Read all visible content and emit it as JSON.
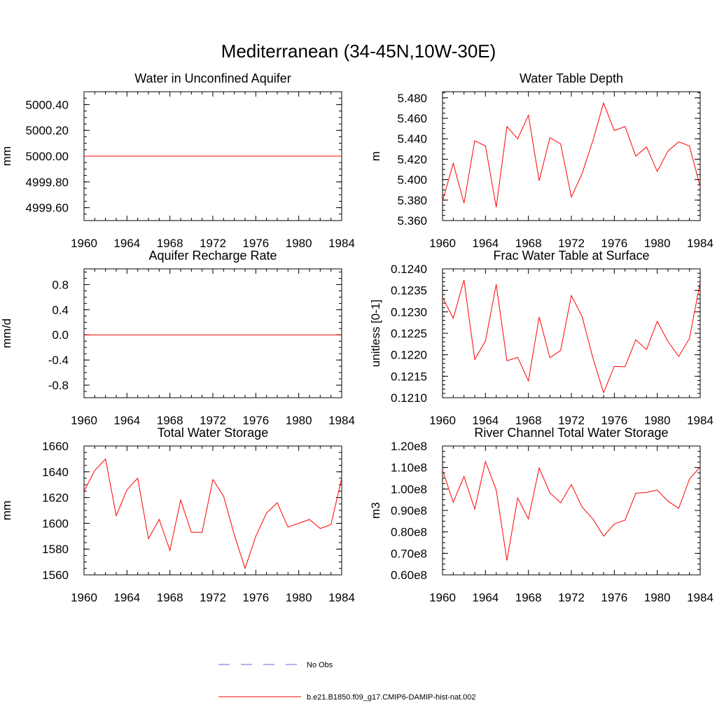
{
  "figure": {
    "title": "Mediterranean (34-45N,10W-30E)"
  },
  "legend": {
    "items": [
      {
        "label": "No Obs",
        "style": "dashed",
        "color": "#6a6adf"
      },
      {
        "label": "b.e21.B1850.f09_g17.CMIP6-DAMIP-hist-nat.002",
        "style": "solid",
        "color": "#ff0000"
      }
    ]
  },
  "chart_data": [
    {
      "type": "line",
      "title": "Water in Unconfined Aquifer",
      "xlabel": "",
      "ylabel": "mm",
      "xlim": [
        1960,
        1984
      ],
      "ylim": [
        4999.5,
        5000.5
      ],
      "xticks": [
        "1960",
        "1964",
        "1968",
        "1972",
        "1976",
        "1980",
        "1984"
      ],
      "yticks": [
        "4999.60",
        "4999.80",
        "5000.00",
        "5000.20",
        "5000.40"
      ],
      "ytick_values": [
        4999.6,
        4999.8,
        5000.0,
        5000.2,
        5000.4
      ],
      "yminor": 0.05,
      "grid": false,
      "series": [
        {
          "color": "#ff0000",
          "x": [
            1960,
            1961,
            1962,
            1963,
            1964,
            1965,
            1966,
            1967,
            1968,
            1969,
            1970,
            1971,
            1972,
            1973,
            1974,
            1975,
            1976,
            1977,
            1978,
            1979,
            1980,
            1981,
            1982,
            1983,
            1984
          ],
          "values": [
            5000,
            5000,
            5000,
            5000,
            5000,
            5000,
            5000,
            5000,
            5000,
            5000,
            5000,
            5000,
            5000,
            5000,
            5000,
            5000,
            5000,
            5000,
            5000,
            5000,
            5000,
            5000,
            5000,
            5000,
            5000
          ]
        }
      ]
    },
    {
      "type": "line",
      "title": "Water Table Depth",
      "xlabel": "",
      "ylabel": "m",
      "xlim": [
        1960,
        1984
      ],
      "ylim": [
        5.36,
        5.486
      ],
      "xticks": [
        "1960",
        "1964",
        "1968",
        "1972",
        "1976",
        "1980",
        "1984"
      ],
      "yticks": [
        "5.360",
        "5.380",
        "5.400",
        "5.420",
        "5.440",
        "5.460",
        "5.480"
      ],
      "ytick_values": [
        5.36,
        5.38,
        5.4,
        5.42,
        5.44,
        5.46,
        5.48
      ],
      "yminor": 0.005,
      "grid": false,
      "series": [
        {
          "color": "#ff0000",
          "x": [
            1960,
            1961,
            1962,
            1963,
            1964,
            1965,
            1966,
            1967,
            1968,
            1969,
            1970,
            1971,
            1972,
            1973,
            1974,
            1975,
            1976,
            1977,
            1978,
            1979,
            1980,
            1981,
            1982,
            1983,
            1984
          ],
          "values": [
            5.379,
            5.416,
            5.377,
            5.438,
            5.433,
            5.373,
            5.452,
            5.44,
            5.463,
            5.399,
            5.441,
            5.435,
            5.383,
            5.406,
            5.438,
            5.475,
            5.448,
            5.452,
            5.423,
            5.432,
            5.408,
            5.428,
            5.437,
            5.433,
            5.393
          ]
        }
      ]
    },
    {
      "type": "line",
      "title": "Aquifer Recharge Rate",
      "xlabel": "",
      "ylabel": "mm/d",
      "xlim": [
        1960,
        1984
      ],
      "ylim": [
        -1.0,
        1.05
      ],
      "xticks": [
        "1960",
        "1964",
        "1968",
        "1972",
        "1976",
        "1980",
        "1984"
      ],
      "yticks": [
        "-0.8",
        "-0.4",
        "0.0",
        "0.4",
        "0.8"
      ],
      "ytick_values": [
        -0.8,
        -0.4,
        0.0,
        0.4,
        0.8
      ],
      "yminor": 0.1,
      "grid": false,
      "series": [
        {
          "color": "#ff0000",
          "x": [
            1960,
            1961,
            1962,
            1963,
            1964,
            1965,
            1966,
            1967,
            1968,
            1969,
            1970,
            1971,
            1972,
            1973,
            1974,
            1975,
            1976,
            1977,
            1978,
            1979,
            1980,
            1981,
            1982,
            1983,
            1984
          ],
          "values": [
            0,
            0,
            0,
            0,
            0,
            0,
            0,
            0,
            0,
            0,
            0,
            0,
            0,
            0,
            0,
            0,
            0,
            0,
            0,
            0,
            0,
            0,
            0,
            0,
            0
          ]
        }
      ]
    },
    {
      "type": "line",
      "title": "Frac Water Table at Surface",
      "xlabel": "",
      "ylabel": "unitless [0-1]",
      "xlim": [
        1960,
        1984
      ],
      "ylim": [
        0.121,
        0.124
      ],
      "xticks": [
        "1960",
        "1964",
        "1968",
        "1972",
        "1976",
        "1980",
        "1984"
      ],
      "yticks": [
        "0.1210",
        "0.1215",
        "0.1220",
        "0.1225",
        "0.1230",
        "0.1235",
        "0.1240"
      ],
      "ytick_values": [
        0.121,
        0.1215,
        0.122,
        0.1225,
        0.123,
        0.1235,
        0.124
      ],
      "yminor": 0.0001,
      "grid": false,
      "series": [
        {
          "color": "#ff0000",
          "x": [
            1960,
            1961,
            1962,
            1963,
            1964,
            1965,
            1966,
            1967,
            1968,
            1969,
            1970,
            1971,
            1972,
            1973,
            1974,
            1975,
            1976,
            1977,
            1978,
            1979,
            1980,
            1981,
            1982,
            1983,
            1984
          ],
          "values": [
            0.12334,
            0.12285,
            0.12374,
            0.12189,
            0.12232,
            0.12364,
            0.12186,
            0.12194,
            0.12139,
            0.12288,
            0.12193,
            0.1221,
            0.12338,
            0.12289,
            0.12193,
            0.12112,
            0.12173,
            0.12172,
            0.12235,
            0.12212,
            0.12278,
            0.12231,
            0.12196,
            0.12238,
            0.12369
          ]
        }
      ]
    },
    {
      "type": "line",
      "title": "Total Water Storage",
      "xlabel": "",
      "ylabel": "mm",
      "xlim": [
        1960,
        1984
      ],
      "ylim": [
        1560,
        1660
      ],
      "xticks": [
        "1960",
        "1964",
        "1968",
        "1972",
        "1976",
        "1980",
        "1984"
      ],
      "yticks": [
        "1560",
        "1580",
        "1600",
        "1620",
        "1640",
        "1660"
      ],
      "ytick_values": [
        1560,
        1580,
        1600,
        1620,
        1640,
        1660
      ],
      "yminor": 5,
      "grid": false,
      "series": [
        {
          "color": "#ff0000",
          "x": [
            1960,
            1961,
            1962,
            1963,
            1964,
            1965,
            1966,
            1967,
            1968,
            1969,
            1970,
            1971,
            1972,
            1973,
            1974,
            1975,
            1976,
            1977,
            1978,
            1979,
            1980,
            1981,
            1982,
            1983,
            1984
          ],
          "values": [
            1625,
            1641,
            1650,
            1606,
            1626,
            1635,
            1588,
            1603,
            1579,
            1618,
            1593,
            1593,
            1634,
            1621,
            1591,
            1565,
            1590,
            1608,
            1616,
            1597,
            1600,
            1603,
            1596,
            1599,
            1635
          ]
        }
      ]
    },
    {
      "type": "line",
      "title": "River Channel Total Water Storage",
      "xlabel": "",
      "ylabel": "m3",
      "xlim": [
        1960,
        1984
      ],
      "ylim": [
        60000000,
        120000000
      ],
      "xticks": [
        "1960",
        "1964",
        "1968",
        "1972",
        "1976",
        "1980",
        "1984"
      ],
      "yticks": [
        "0.60e8",
        "0.70e8",
        "0.80e8",
        "0.90e8",
        "1.00e8",
        "1.10e8",
        "1.20e8"
      ],
      "ytick_values": [
        60000000,
        70000000,
        80000000,
        90000000,
        100000000,
        110000000,
        120000000
      ],
      "yminor": 2500000,
      "grid": false,
      "series": [
        {
          "color": "#ff0000",
          "x": [
            1960,
            1961,
            1962,
            1963,
            1964,
            1965,
            1966,
            1967,
            1968,
            1969,
            1970,
            1971,
            1972,
            1973,
            1974,
            1975,
            1976,
            1977,
            1978,
            1979,
            1980,
            1981,
            1982,
            1983,
            1984
          ],
          "values": [
            108700000,
            93800000,
            105800000,
            90600000,
            112800000,
            99600000,
            66700000,
            95800000,
            86000000,
            109800000,
            98200000,
            93600000,
            102100000,
            91500000,
            86100000,
            78000000,
            83700000,
            85500000,
            98000000,
            98400000,
            99500000,
            94300000,
            91000000,
            104600000,
            110300000
          ]
        }
      ]
    }
  ]
}
